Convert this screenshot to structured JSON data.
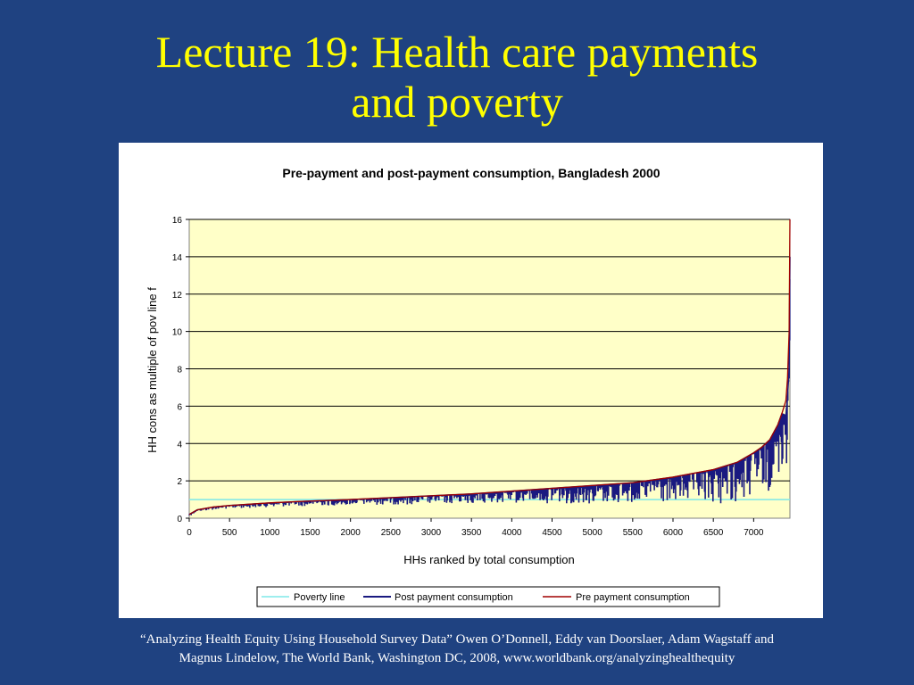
{
  "slide": {
    "title_line1": "Lecture 19: Health care payments",
    "title_line2": "and poverty",
    "footnote_line1": "“Analyzing Health Equity Using Household Survey Data” Owen O’Donnell, Eddy van Doorslaer, Adam Wagstaff and",
    "footnote_line2": "Magnus Lindelow, The World Bank, Washington DC, 2008, www.worldbank.org/analyzinghealthequity"
  },
  "colors": {
    "background": "#1f4281",
    "title": "#ffff00",
    "plot_area": "#ffffc8",
    "poverty_line": "#7ee8e8",
    "post_payment": "#1a1a80",
    "pre_payment": "#a00000"
  },
  "chart_data": {
    "type": "line",
    "title": "Pre-payment and post-payment consumption, Bangladesh 2000",
    "xlabel": "HHs ranked by total consumption",
    "ylabel": "HH cons as multiple of pov line f",
    "xlim": [
      0,
      7450
    ],
    "ylim": [
      0,
      16
    ],
    "x_ticks": [
      "0",
      "500",
      "1000",
      "1500",
      "2000",
      "2500",
      "3000",
      "3500",
      "4000",
      "4500",
      "5000",
      "5500",
      "6000",
      "6500",
      "7000"
    ],
    "y_ticks": [
      "0",
      "2",
      "4",
      "6",
      "8",
      "10",
      "12",
      "14",
      "16"
    ],
    "grid": "horizontal",
    "legend_position": "bottom",
    "series": [
      {
        "name": "Poverty line",
        "x": [
          0,
          7450
        ],
        "y": [
          1,
          1
        ]
      },
      {
        "name": "Post payment consumption",
        "x": [
          0,
          100,
          300,
          500,
          1000,
          1500,
          2000,
          2500,
          3000,
          3500,
          4000,
          4500,
          5000,
          5500,
          6000,
          6500,
          6800,
          7000,
          7100,
          7200,
          7300,
          7350,
          7400,
          7420,
          7440,
          7450
        ],
        "y": [
          0.2,
          0.45,
          0.6,
          0.68,
          0.82,
          0.92,
          1.0,
          1.1,
          1.2,
          1.3,
          1.45,
          1.6,
          1.75,
          1.9,
          2.2,
          2.6,
          3.0,
          3.5,
          3.8,
          4.2,
          5.0,
          5.6,
          5.5,
          6.5,
          8.0,
          14.0
        ],
        "min_y": [
          0.1,
          0.35,
          0.45,
          0.5,
          0.6,
          0.65,
          0.7,
          0.72,
          0.75,
          0.78,
          0.8,
          0.8,
          0.75,
          0.8,
          0.7,
          0.7,
          0.7,
          0.9,
          1.2,
          1.5,
          2.0,
          2.5,
          2.5,
          3.0,
          4.0,
          4.0
        ]
      },
      {
        "name": "Pre payment consumption",
        "x": [
          0,
          100,
          300,
          500,
          1000,
          1500,
          2000,
          2500,
          3000,
          3500,
          4000,
          4500,
          5000,
          5500,
          6000,
          6500,
          6800,
          7000,
          7100,
          7200,
          7300,
          7350,
          7400,
          7420,
          7440,
          7450
        ],
        "y": [
          0.2,
          0.45,
          0.6,
          0.68,
          0.82,
          0.92,
          1.0,
          1.1,
          1.2,
          1.3,
          1.45,
          1.6,
          1.75,
          1.9,
          2.2,
          2.6,
          3.0,
          3.5,
          3.8,
          4.2,
          5.0,
          5.6,
          6.3,
          7.5,
          10.0,
          16.0
        ]
      }
    ]
  }
}
